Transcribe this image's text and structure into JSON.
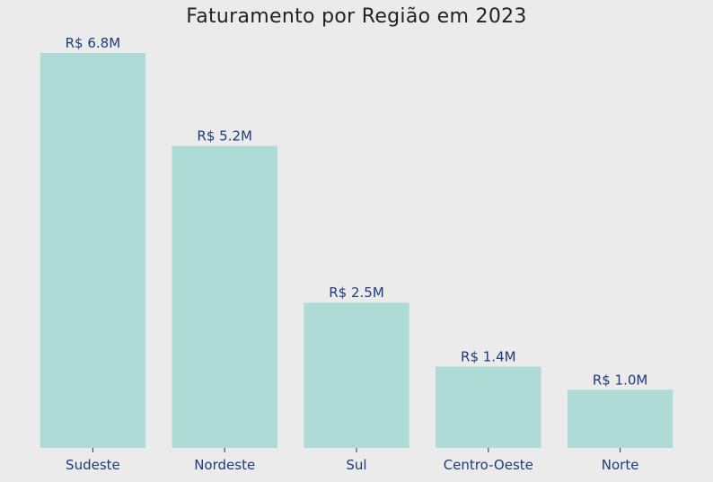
{
  "chart_data": {
    "type": "bar",
    "title": "Faturamento por Região em 2023",
    "xlabel": "",
    "ylabel": "",
    "categories": [
      "Sudeste",
      "Nordeste",
      "Sul",
      "Centro-Oeste",
      "Norte"
    ],
    "values": [
      6.8,
      5.2,
      2.5,
      1.4,
      1.0
    ],
    "value_labels": [
      "R$ 6.8M",
      "R$ 5.2M",
      "R$ 2.5M",
      "R$ 1.4M",
      "R$ 1.0M"
    ],
    "ylim": [
      0,
      6.8
    ],
    "grid": false,
    "legend": "none"
  },
  "colors": {
    "background": "#ebebeb",
    "bar": "#aedbd5",
    "title": "#222222",
    "labels": "#1f3b78",
    "tick": "#333333"
  }
}
